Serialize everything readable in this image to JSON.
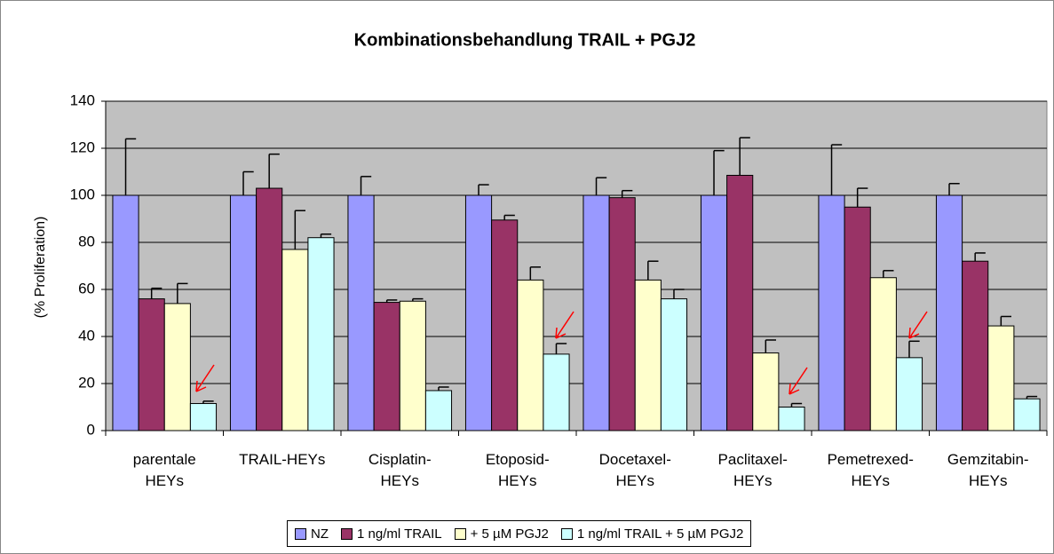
{
  "chart_data": {
    "type": "bar",
    "title": "Kombinationsbehandlung TRAIL + PGJ2",
    "y_label": "(% Proliferation)",
    "categories": [
      "parentale HEYs",
      "TRAIL-HEYs",
      "Cisplatin-HEYs",
      "Etoposid-HEYs",
      "Docetaxel-HEYs",
      "Paclitaxel-HEYs",
      "Pemetrexed-HEYs",
      "Gemzitabin-HEYs"
    ],
    "series": [
      {
        "name": "NZ",
        "color": "#9999ff",
        "values": [
          100,
          100,
          100,
          100,
          100,
          100,
          100,
          100
        ],
        "errors": [
          24,
          10,
          8,
          4.5,
          7.5,
          19,
          21.5,
          5
        ]
      },
      {
        "name": "1 ng/ml TRAIL",
        "color": "#993366",
        "values": [
          56,
          103,
          54.5,
          89.5,
          99,
          108.5,
          95,
          72
        ],
        "errors": [
          4.5,
          14.5,
          1,
          2,
          3,
          16,
          8,
          3.5
        ]
      },
      {
        "name": "+ 5 µM PGJ2",
        "color": "#ffffcc",
        "values": [
          54,
          77,
          55,
          64,
          64,
          33,
          65,
          44.5
        ],
        "errors": [
          8.5,
          16.5,
          1,
          5.5,
          8,
          5.5,
          3,
          4
        ]
      },
      {
        "name": "1 ng/ml TRAIL + 5 µM PGJ2",
        "color": "#ccffff",
        "values": [
          11.5,
          82,
          17,
          32.5,
          56,
          10,
          31,
          13.5
        ],
        "errors": [
          1,
          1.5,
          1.5,
          4.5,
          4,
          1.5,
          7,
          1
        ]
      }
    ],
    "ylim": [
      0,
      140
    ],
    "yticks": [
      0,
      20,
      40,
      60,
      80,
      100,
      120,
      140
    ],
    "grid": true,
    "legend": "bottom",
    "plot_background": "#c0c0c0"
  }
}
